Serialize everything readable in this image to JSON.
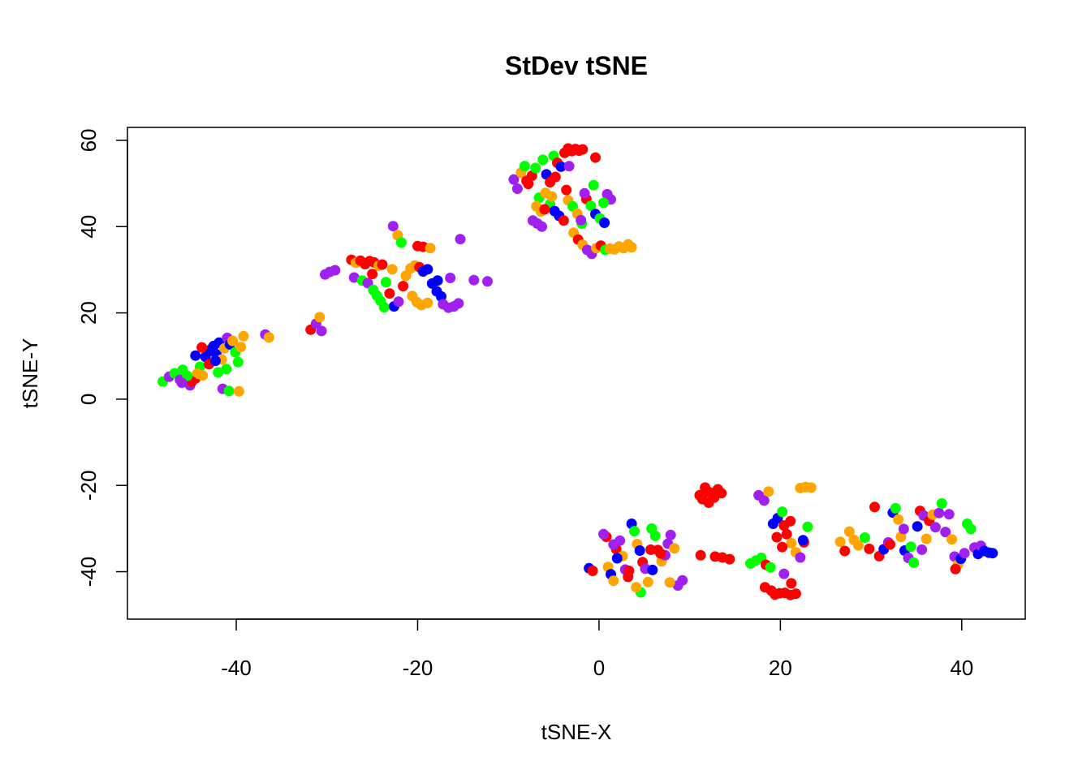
{
  "chart_data": {
    "type": "scatter",
    "title": "StDev tSNE",
    "xlabel": "tSNE-X",
    "ylabel": "tSNE-Y",
    "xlim": [
      -52,
      47
    ],
    "ylim": [
      -51,
      63
    ],
    "xticks": [
      -40,
      -20,
      0,
      20,
      40
    ],
    "yticks": [
      -40,
      -20,
      0,
      20,
      40,
      60
    ],
    "xtick_labels": [
      "-40",
      "-20",
      "0",
      "20",
      "40"
    ],
    "ytick_labels": [
      "-40",
      "-20",
      "0",
      "20",
      "40",
      "60"
    ],
    "grid": false,
    "legend": "none",
    "point_color_palette": [
      "#0000ff",
      "#00ff00",
      "#ff0000",
      "#ffa500",
      "#a020f0"
    ],
    "points": [
      [
        -48.1,
        4.1,
        1
      ],
      [
        -47.4,
        5.2,
        4
      ],
      [
        -46.8,
        6.0,
        1
      ],
      [
        -46.2,
        4.5,
        4
      ],
      [
        -45.9,
        6.8,
        1
      ],
      [
        -45.1,
        3.2,
        4
      ],
      [
        -44.5,
        4.8,
        2
      ],
      [
        -44.0,
        7.5,
        1
      ],
      [
        -43.7,
        5.5,
        3
      ],
      [
        -43.4,
        9.8,
        0
      ],
      [
        -43.0,
        8.1,
        2
      ],
      [
        -42.8,
        11.6,
        2
      ],
      [
        -42.5,
        12.3,
        0
      ],
      [
        -42.2,
        10.4,
        0
      ],
      [
        -41.9,
        13.1,
        0
      ],
      [
        -41.6,
        9.2,
        3
      ],
      [
        -41.3,
        11.8,
        3
      ],
      [
        -41.0,
        14.2,
        4
      ],
      [
        -40.7,
        12.7,
        0
      ],
      [
        -40.4,
        13.5,
        3
      ],
      [
        -40.1,
        10.9,
        1
      ],
      [
        -39.8,
        8.6,
        1
      ],
      [
        -39.5,
        12.1,
        3
      ],
      [
        -39.2,
        14.6,
        3
      ],
      [
        -42.0,
        6.2,
        1
      ],
      [
        -42.3,
        8.9,
        0
      ],
      [
        -41.1,
        7.0,
        1
      ],
      [
        -43.1,
        11.0,
        0
      ],
      [
        -44.3,
        5.9,
        3
      ],
      [
        -44.9,
        4.1,
        2
      ],
      [
        -45.4,
        5.4,
        1
      ],
      [
        -46.0,
        3.8,
        4
      ],
      [
        -44.5,
        10.1,
        0
      ],
      [
        -43.8,
        12.0,
        2
      ],
      [
        -41.5,
        2.4,
        4
      ],
      [
        -40.8,
        1.9,
        1
      ],
      [
        -39.7,
        1.8,
        3
      ],
      [
        -36.8,
        15.0,
        4
      ],
      [
        -36.4,
        14.3,
        3
      ],
      [
        -31.8,
        16.1,
        2
      ],
      [
        -31.2,
        17.5,
        4
      ],
      [
        -30.8,
        19.0,
        3
      ],
      [
        -30.6,
        15.8,
        4
      ],
      [
        -30.2,
        28.9,
        4
      ],
      [
        -29.7,
        29.5,
        4
      ],
      [
        -29.1,
        29.9,
        4
      ],
      [
        -27.3,
        32.3,
        2
      ],
      [
        -26.8,
        31.6,
        3
      ],
      [
        -26.3,
        32.1,
        2
      ],
      [
        -25.8,
        31.3,
        2
      ],
      [
        -25.3,
        32.0,
        2
      ],
      [
        -24.8,
        31.7,
        2
      ],
      [
        -24.3,
        30.9,
        3
      ],
      [
        -23.9,
        31.2,
        2
      ],
      [
        -27.0,
        28.2,
        4
      ],
      [
        -26.1,
        27.5,
        1
      ],
      [
        -25.5,
        26.9,
        4
      ],
      [
        -24.9,
        25.3,
        1
      ],
      [
        -24.5,
        24.0,
        1
      ],
      [
        -24.1,
        22.8,
        1
      ],
      [
        -23.7,
        21.3,
        1
      ],
      [
        -23.1,
        24.5,
        2
      ],
      [
        -22.6,
        21.5,
        0
      ],
      [
        -22.1,
        22.6,
        4
      ],
      [
        -22.7,
        40.1,
        4
      ],
      [
        -22.2,
        38.0,
        3
      ],
      [
        -21.8,
        36.3,
        1
      ],
      [
        -20.8,
        30.3,
        3
      ],
      [
        -20.3,
        31.0,
        3
      ],
      [
        -19.8,
        30.6,
        2
      ],
      [
        -19.4,
        29.6,
        0
      ],
      [
        -18.9,
        30.1,
        0
      ],
      [
        -18.4,
        26.8,
        0
      ],
      [
        -17.9,
        25.0,
        0
      ],
      [
        -17.4,
        23.8,
        0
      ],
      [
        -20.6,
        23.9,
        3
      ],
      [
        -20.1,
        22.5,
        3
      ],
      [
        -19.6,
        21.8,
        3
      ],
      [
        -18.9,
        22.3,
        3
      ],
      [
        -17.2,
        22.0,
        4
      ],
      [
        -16.6,
        21.2,
        4
      ],
      [
        -16.0,
        21.5,
        4
      ],
      [
        -15.5,
        22.2,
        4
      ],
      [
        -17.8,
        27.5,
        0
      ],
      [
        -16.4,
        28.1,
        4
      ],
      [
        -20.0,
        35.5,
        2
      ],
      [
        -19.4,
        35.3,
        2
      ],
      [
        -18.6,
        35.0,
        3
      ],
      [
        -15.3,
        37.1,
        4
      ],
      [
        -13.8,
        27.6,
        4
      ],
      [
        -12.3,
        27.3,
        4
      ],
      [
        -21.3,
        28.6,
        3
      ],
      [
        -22.8,
        30.1,
        3
      ],
      [
        -25.0,
        29.0,
        2
      ],
      [
        -23.5,
        27.1,
        1
      ],
      [
        -21.6,
        26.2,
        2
      ],
      [
        -9.4,
        50.9,
        4
      ],
      [
        -9.0,
        48.8,
        4
      ],
      [
        -8.6,
        52.5,
        3
      ],
      [
        -8.2,
        54.0,
        1
      ],
      [
        -7.8,
        49.9,
        2
      ],
      [
        -7.4,
        51.8,
        2
      ],
      [
        -7.0,
        53.6,
        1
      ],
      [
        -6.6,
        46.7,
        1
      ],
      [
        -6.2,
        55.5,
        1
      ],
      [
        -5.8,
        52.1,
        0
      ],
      [
        -5.4,
        50.3,
        2
      ],
      [
        -5.0,
        56.4,
        1
      ],
      [
        -4.6,
        54.8,
        2
      ],
      [
        -4.2,
        53.9,
        0
      ],
      [
        -3.8,
        57.1,
        2
      ],
      [
        -3.4,
        58.1,
        2
      ],
      [
        -3.0,
        57.5,
        2
      ],
      [
        -2.6,
        58.0,
        2
      ],
      [
        -2.2,
        57.6,
        2
      ],
      [
        -1.8,
        57.9,
        2
      ],
      [
        -0.4,
        56.0,
        2
      ],
      [
        -6.9,
        44.7,
        3
      ],
      [
        -6.4,
        43.5,
        3
      ],
      [
        -5.9,
        47.8,
        3
      ],
      [
        -5.4,
        45.2,
        1
      ],
      [
        -4.9,
        43.6,
        0
      ],
      [
        -4.4,
        42.5,
        0
      ],
      [
        -3.9,
        41.4,
        2
      ],
      [
        -3.4,
        46.1,
        3
      ],
      [
        -2.9,
        44.7,
        1
      ],
      [
        -2.4,
        43.0,
        3
      ],
      [
        -1.9,
        40.7,
        1
      ],
      [
        -1.4,
        46.4,
        2
      ],
      [
        -0.9,
        44.8,
        1
      ],
      [
        -0.4,
        42.9,
        0
      ],
      [
        0.1,
        41.9,
        1
      ],
      [
        0.6,
        40.9,
        0
      ],
      [
        0.9,
        47.5,
        4
      ],
      [
        1.3,
        46.3,
        4
      ],
      [
        0.5,
        45.5,
        1
      ],
      [
        -7.3,
        41.4,
        4
      ],
      [
        -6.8,
        40.7,
        4
      ],
      [
        -6.3,
        40.0,
        4
      ],
      [
        -2.8,
        38.6,
        3
      ],
      [
        -2.3,
        37.0,
        2
      ],
      [
        -1.8,
        35.8,
        3
      ],
      [
        -1.3,
        34.6,
        4
      ],
      [
        -0.8,
        33.7,
        4
      ],
      [
        -0.3,
        35.0,
        3
      ],
      [
        0.2,
        35.6,
        2
      ],
      [
        0.7,
        34.6,
        1
      ],
      [
        1.2,
        34.9,
        3
      ],
      [
        1.7,
        34.7,
        3
      ],
      [
        2.2,
        35.4,
        3
      ],
      [
        2.7,
        35.0,
        3
      ],
      [
        3.2,
        35.9,
        3
      ],
      [
        3.6,
        35.2,
        3
      ],
      [
        -4.8,
        51.5,
        2
      ],
      [
        -3.3,
        54.0,
        4
      ],
      [
        -8.0,
        50.6,
        2
      ],
      [
        -5.2,
        47.0,
        3
      ],
      [
        -1.6,
        47.7,
        4
      ],
      [
        -0.6,
        49.6,
        1
      ],
      [
        -2.0,
        41.5,
        4
      ],
      [
        -3.6,
        48.5,
        2
      ],
      [
        -6.0,
        44.0,
        2
      ],
      [
        -1.1,
        -39.2,
        0
      ],
      [
        -0.7,
        -39.8,
        2
      ],
      [
        0.8,
        -31.9,
        2
      ],
      [
        1.0,
        -38.9,
        3
      ],
      [
        1.3,
        -40.6,
        0
      ],
      [
        1.6,
        -42.1,
        3
      ],
      [
        1.9,
        -34.8,
        2
      ],
      [
        2.3,
        -32.8,
        4
      ],
      [
        2.6,
        -36.4,
        3
      ],
      [
        2.9,
        -39.5,
        4
      ],
      [
        3.2,
        -41.2,
        2
      ],
      [
        3.6,
        -28.9,
        0
      ],
      [
        3.9,
        -30.6,
        1
      ],
      [
        4.2,
        -33.6,
        3
      ],
      [
        4.5,
        -35.1,
        0
      ],
      [
        4.8,
        -37.8,
        2
      ],
      [
        5.1,
        -39.3,
        4
      ],
      [
        5.4,
        -42.4,
        3
      ],
      [
        4.6,
        -44.8,
        1
      ],
      [
        4.1,
        -43.6,
        3
      ],
      [
        5.8,
        -30.0,
        1
      ],
      [
        6.2,
        -31.7,
        1
      ],
      [
        6.5,
        -35.0,
        2
      ],
      [
        6.9,
        -37.6,
        3
      ],
      [
        7.3,
        -36.2,
        4
      ],
      [
        7.6,
        -33.5,
        4
      ],
      [
        7.9,
        -31.5,
        4
      ],
      [
        8.3,
        -34.6,
        3
      ],
      [
        8.7,
        -43.2,
        4
      ],
      [
        9.2,
        -42.0,
        4
      ],
      [
        7.8,
        -42.5,
        3
      ],
      [
        5.9,
        -39.6,
        0
      ],
      [
        3.3,
        -39.8,
        2
      ],
      [
        2.0,
        -36.9,
        0
      ],
      [
        1.6,
        -33.7,
        4
      ],
      [
        0.5,
        -31.3,
        4
      ],
      [
        6.8,
        -35.8,
        2
      ],
      [
        5.7,
        -34.9,
        2
      ],
      [
        11.2,
        -36.2,
        2
      ],
      [
        12.8,
        -36.5,
        2
      ],
      [
        13.6,
        -36.7,
        2
      ],
      [
        14.4,
        -37.1,
        2
      ],
      [
        11.1,
        -22.3,
        2
      ],
      [
        11.7,
        -20.5,
        2
      ],
      [
        12.2,
        -21.6,
        2
      ],
      [
        12.7,
        -22.8,
        2
      ],
      [
        13.1,
        -20.9,
        2
      ],
      [
        13.5,
        -21.8,
        2
      ],
      [
        11.4,
        -23.2,
        2
      ],
      [
        12.1,
        -24.0,
        2
      ],
      [
        16.7,
        -38.1,
        1
      ],
      [
        17.3,
        -37.4,
        1
      ],
      [
        17.9,
        -36.8,
        1
      ],
      [
        18.4,
        -38.4,
        2
      ],
      [
        18.9,
        -39.0,
        1
      ],
      [
        17.6,
        -22.3,
        4
      ],
      [
        18.2,
        -23.5,
        4
      ],
      [
        18.7,
        -21.4,
        3
      ],
      [
        19.2,
        -28.9,
        0
      ],
      [
        19.7,
        -27.6,
        0
      ],
      [
        20.2,
        -26.1,
        1
      ],
      [
        20.7,
        -31.3,
        2
      ],
      [
        21.2,
        -33.4,
        3
      ],
      [
        21.7,
        -35.5,
        3
      ],
      [
        22.2,
        -36.7,
        4
      ],
      [
        22.6,
        -33.2,
        2
      ],
      [
        23.0,
        -29.6,
        1
      ],
      [
        22.2,
        -20.6,
        3
      ],
      [
        22.8,
        -20.4,
        3
      ],
      [
        23.4,
        -20.5,
        3
      ],
      [
        20.4,
        -40.5,
        4
      ],
      [
        21.2,
        -42.7,
        2
      ],
      [
        19.9,
        -45.0,
        2
      ],
      [
        19.4,
        -45.3,
        2
      ],
      [
        20.5,
        -44.9,
        2
      ],
      [
        21.1,
        -45.4,
        2
      ],
      [
        21.7,
        -45.1,
        2
      ],
      [
        19.0,
        -44.4,
        2
      ],
      [
        18.3,
        -43.6,
        2
      ],
      [
        20.4,
        -29.3,
        2
      ],
      [
        19.6,
        -32.0,
        2
      ],
      [
        21.1,
        -28.3,
        2
      ],
      [
        20.2,
        -34.3,
        2
      ],
      [
        22.5,
        -32.7,
        0
      ],
      [
        26.6,
        -33.1,
        3
      ],
      [
        27.1,
        -35.2,
        2
      ],
      [
        27.6,
        -30.7,
        3
      ],
      [
        28.1,
        -32.6,
        3
      ],
      [
        28.6,
        -33.9,
        3
      ],
      [
        29.3,
        -32.1,
        1
      ],
      [
        29.8,
        -34.7,
        2
      ],
      [
        30.4,
        -25.0,
        2
      ],
      [
        30.9,
        -36.4,
        2
      ],
      [
        31.4,
        -34.8,
        0
      ],
      [
        31.9,
        -33.2,
        4
      ],
      [
        32.4,
        -26.3,
        0
      ],
      [
        32.7,
        -25.3,
        1
      ],
      [
        33.0,
        -27.9,
        3
      ],
      [
        33.3,
        -31.9,
        3
      ],
      [
        33.7,
        -35.1,
        0
      ],
      [
        34.1,
        -36.8,
        4
      ],
      [
        34.4,
        -34.2,
        1
      ],
      [
        34.7,
        -37.9,
        1
      ],
      [
        35.1,
        -29.5,
        0
      ],
      [
        35.4,
        -25.9,
        2
      ],
      [
        35.8,
        -27.0,
        4
      ],
      [
        36.1,
        -32.4,
        3
      ],
      [
        36.4,
        -28.2,
        2
      ],
      [
        36.8,
        -26.8,
        3
      ],
      [
        37.1,
        -29.7,
        4
      ],
      [
        37.5,
        -26.4,
        4
      ],
      [
        37.8,
        -24.2,
        1
      ],
      [
        38.2,
        -30.8,
        4
      ],
      [
        38.6,
        -26.7,
        4
      ],
      [
        38.9,
        -32.5,
        3
      ],
      [
        39.2,
        -36.5,
        4
      ],
      [
        39.6,
        -38.3,
        3
      ],
      [
        39.9,
        -37.0,
        0
      ],
      [
        40.3,
        -35.7,
        4
      ],
      [
        40.6,
        -28.9,
        1
      ],
      [
        41.0,
        -30.1,
        1
      ],
      [
        41.4,
        -34.4,
        4
      ],
      [
        41.8,
        -35.9,
        0
      ],
      [
        42.1,
        -34.0,
        4
      ],
      [
        42.5,
        -35.2,
        0
      ],
      [
        43.0,
        -35.6,
        0
      ],
      [
        43.4,
        -35.7,
        0
      ],
      [
        39.3,
        -39.4,
        2
      ],
      [
        35.6,
        -34.9,
        4
      ],
      [
        33.6,
        -30.1,
        4
      ],
      [
        32.1,
        -33.7,
        2
      ]
    ]
  }
}
